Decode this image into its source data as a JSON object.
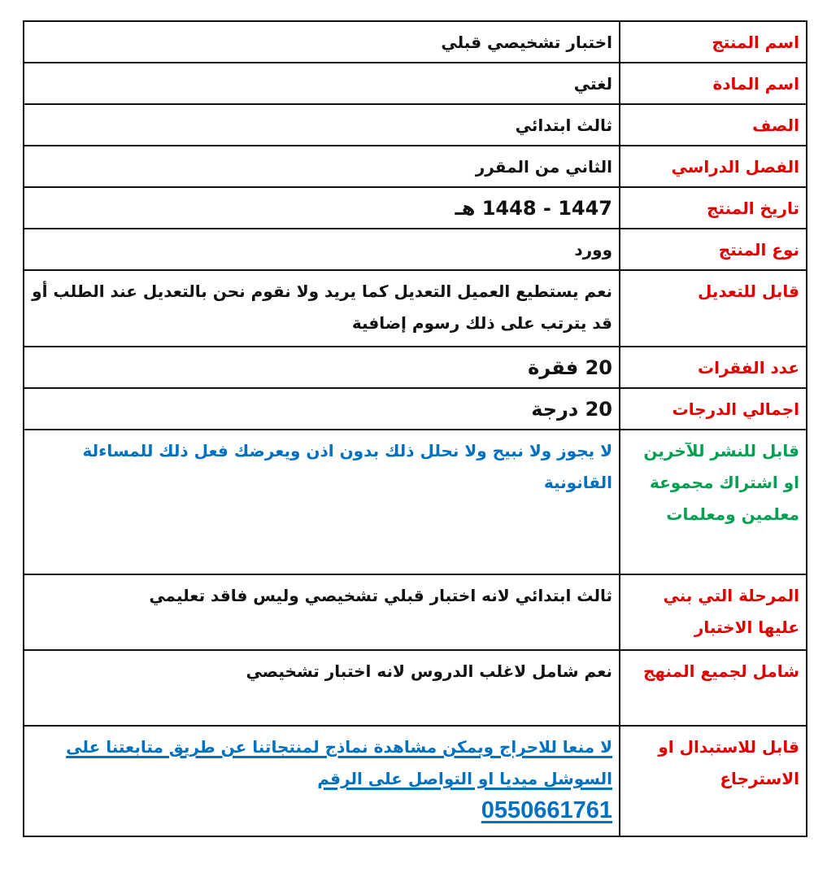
{
  "colors": {
    "label_red": "#e00000",
    "label_green": "#00a050",
    "text_blue": "#0070c0",
    "text_black": "#111111"
  },
  "rows": [
    {
      "label": "اسم المنتج",
      "value": "اختبار تشخيصي قبلي"
    },
    {
      "label": "اسم المادة",
      "value": "لغتي"
    },
    {
      "label": "الصف",
      "value": "ثالث ابتدائي"
    },
    {
      "label": "الفصل الدراسي",
      "value": "الثاني من المقرر"
    },
    {
      "label": "تاريخ المنتج",
      "value": "1447  -  1448 هـ"
    },
    {
      "label": "نوع المنتج",
      "value": "وورد"
    },
    {
      "label": "قابل للتعديل",
      "value": "نعم يستطيع العميل التعديل كما يريد  ولا نقوم نحن  بالتعديل عند الطلب أو قد يترتب على ذلك رسوم إضافية"
    },
    {
      "label": "عدد الفقرات",
      "value": "20 فقرة"
    },
    {
      "label": "اجمالي الدرجات",
      "value": "20 درجة"
    },
    {
      "label": "قابل للنشر للآخرين او اشتراك مجموعة معلمين ومعلمات",
      "value": " لا يجوز ولا نبيح ولا نحلل ذلك بدون اذن  ويعرضك فعل ذلك للمساءلة القانونية"
    },
    {
      "label": "المرحلة التي بني عليها الاختبار",
      "value": "ثالث ابتدائي  لانه اختبار قبلي تشخيصي وليس فاقد تعليمي"
    },
    {
      "label": "شامل لجميع المنهج",
      "value": "نعم شامل لاغلب الدروس لانه اختبار تشخيصي"
    },
    {
      "label": "قابل للاستبدال او الاسترجاع",
      "value": " لا منعا للاحراج ويمكن مشاهدة نماذج لمنتجاتنا عن طريق متابعتنا على السوشل ميديا او التواصل على الرقم",
      "phone": "0550661761"
    }
  ]
}
